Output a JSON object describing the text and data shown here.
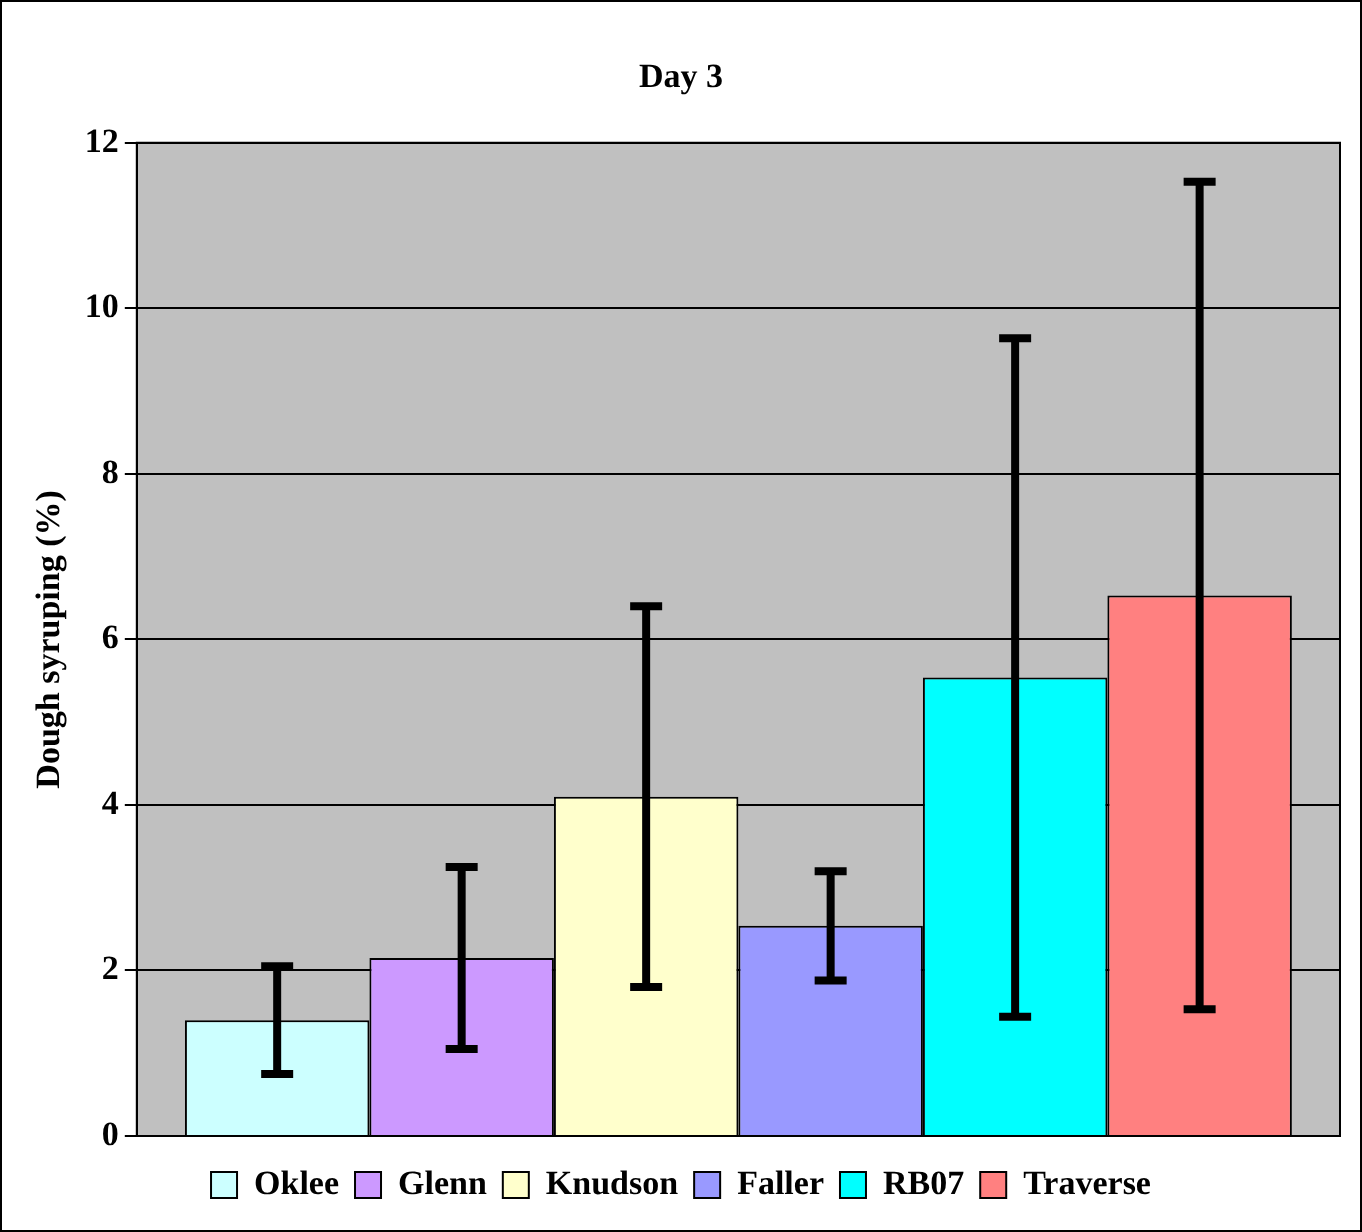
{
  "chart_data": {
    "type": "bar",
    "title": "Day 3",
    "ylabel": "Dough syruping (%)",
    "categories": [
      null
    ],
    "series": [
      {
        "name": "Oklee",
        "color": "#ccffff",
        "values": [
          1.4
        ],
        "errors": [
          0.65
        ]
      },
      {
        "name": "Glenn",
        "color": "#cc99ff",
        "values": [
          2.15
        ],
        "errors": [
          1.1
        ]
      },
      {
        "name": "Knudson",
        "color": "#ffffcc",
        "values": [
          4.1
        ],
        "errors": [
          2.3
        ]
      },
      {
        "name": "Faller",
        "color": "#9999ff",
        "values": [
          2.54
        ],
        "errors": [
          0.66
        ]
      },
      {
        "name": "RB07",
        "color": "#00ffff",
        "values": [
          5.54
        ],
        "errors": [
          4.1
        ]
      },
      {
        "name": "Traverse",
        "color": "#ff8080",
        "values": [
          6.53
        ],
        "errors": [
          5.0
        ]
      }
    ],
    "ylim": [
      0,
      12
    ],
    "yticks": [
      0,
      2,
      4,
      6,
      8,
      10,
      12
    ],
    "grid": "y",
    "legend": "bottom",
    "tick_labels": "y"
  }
}
